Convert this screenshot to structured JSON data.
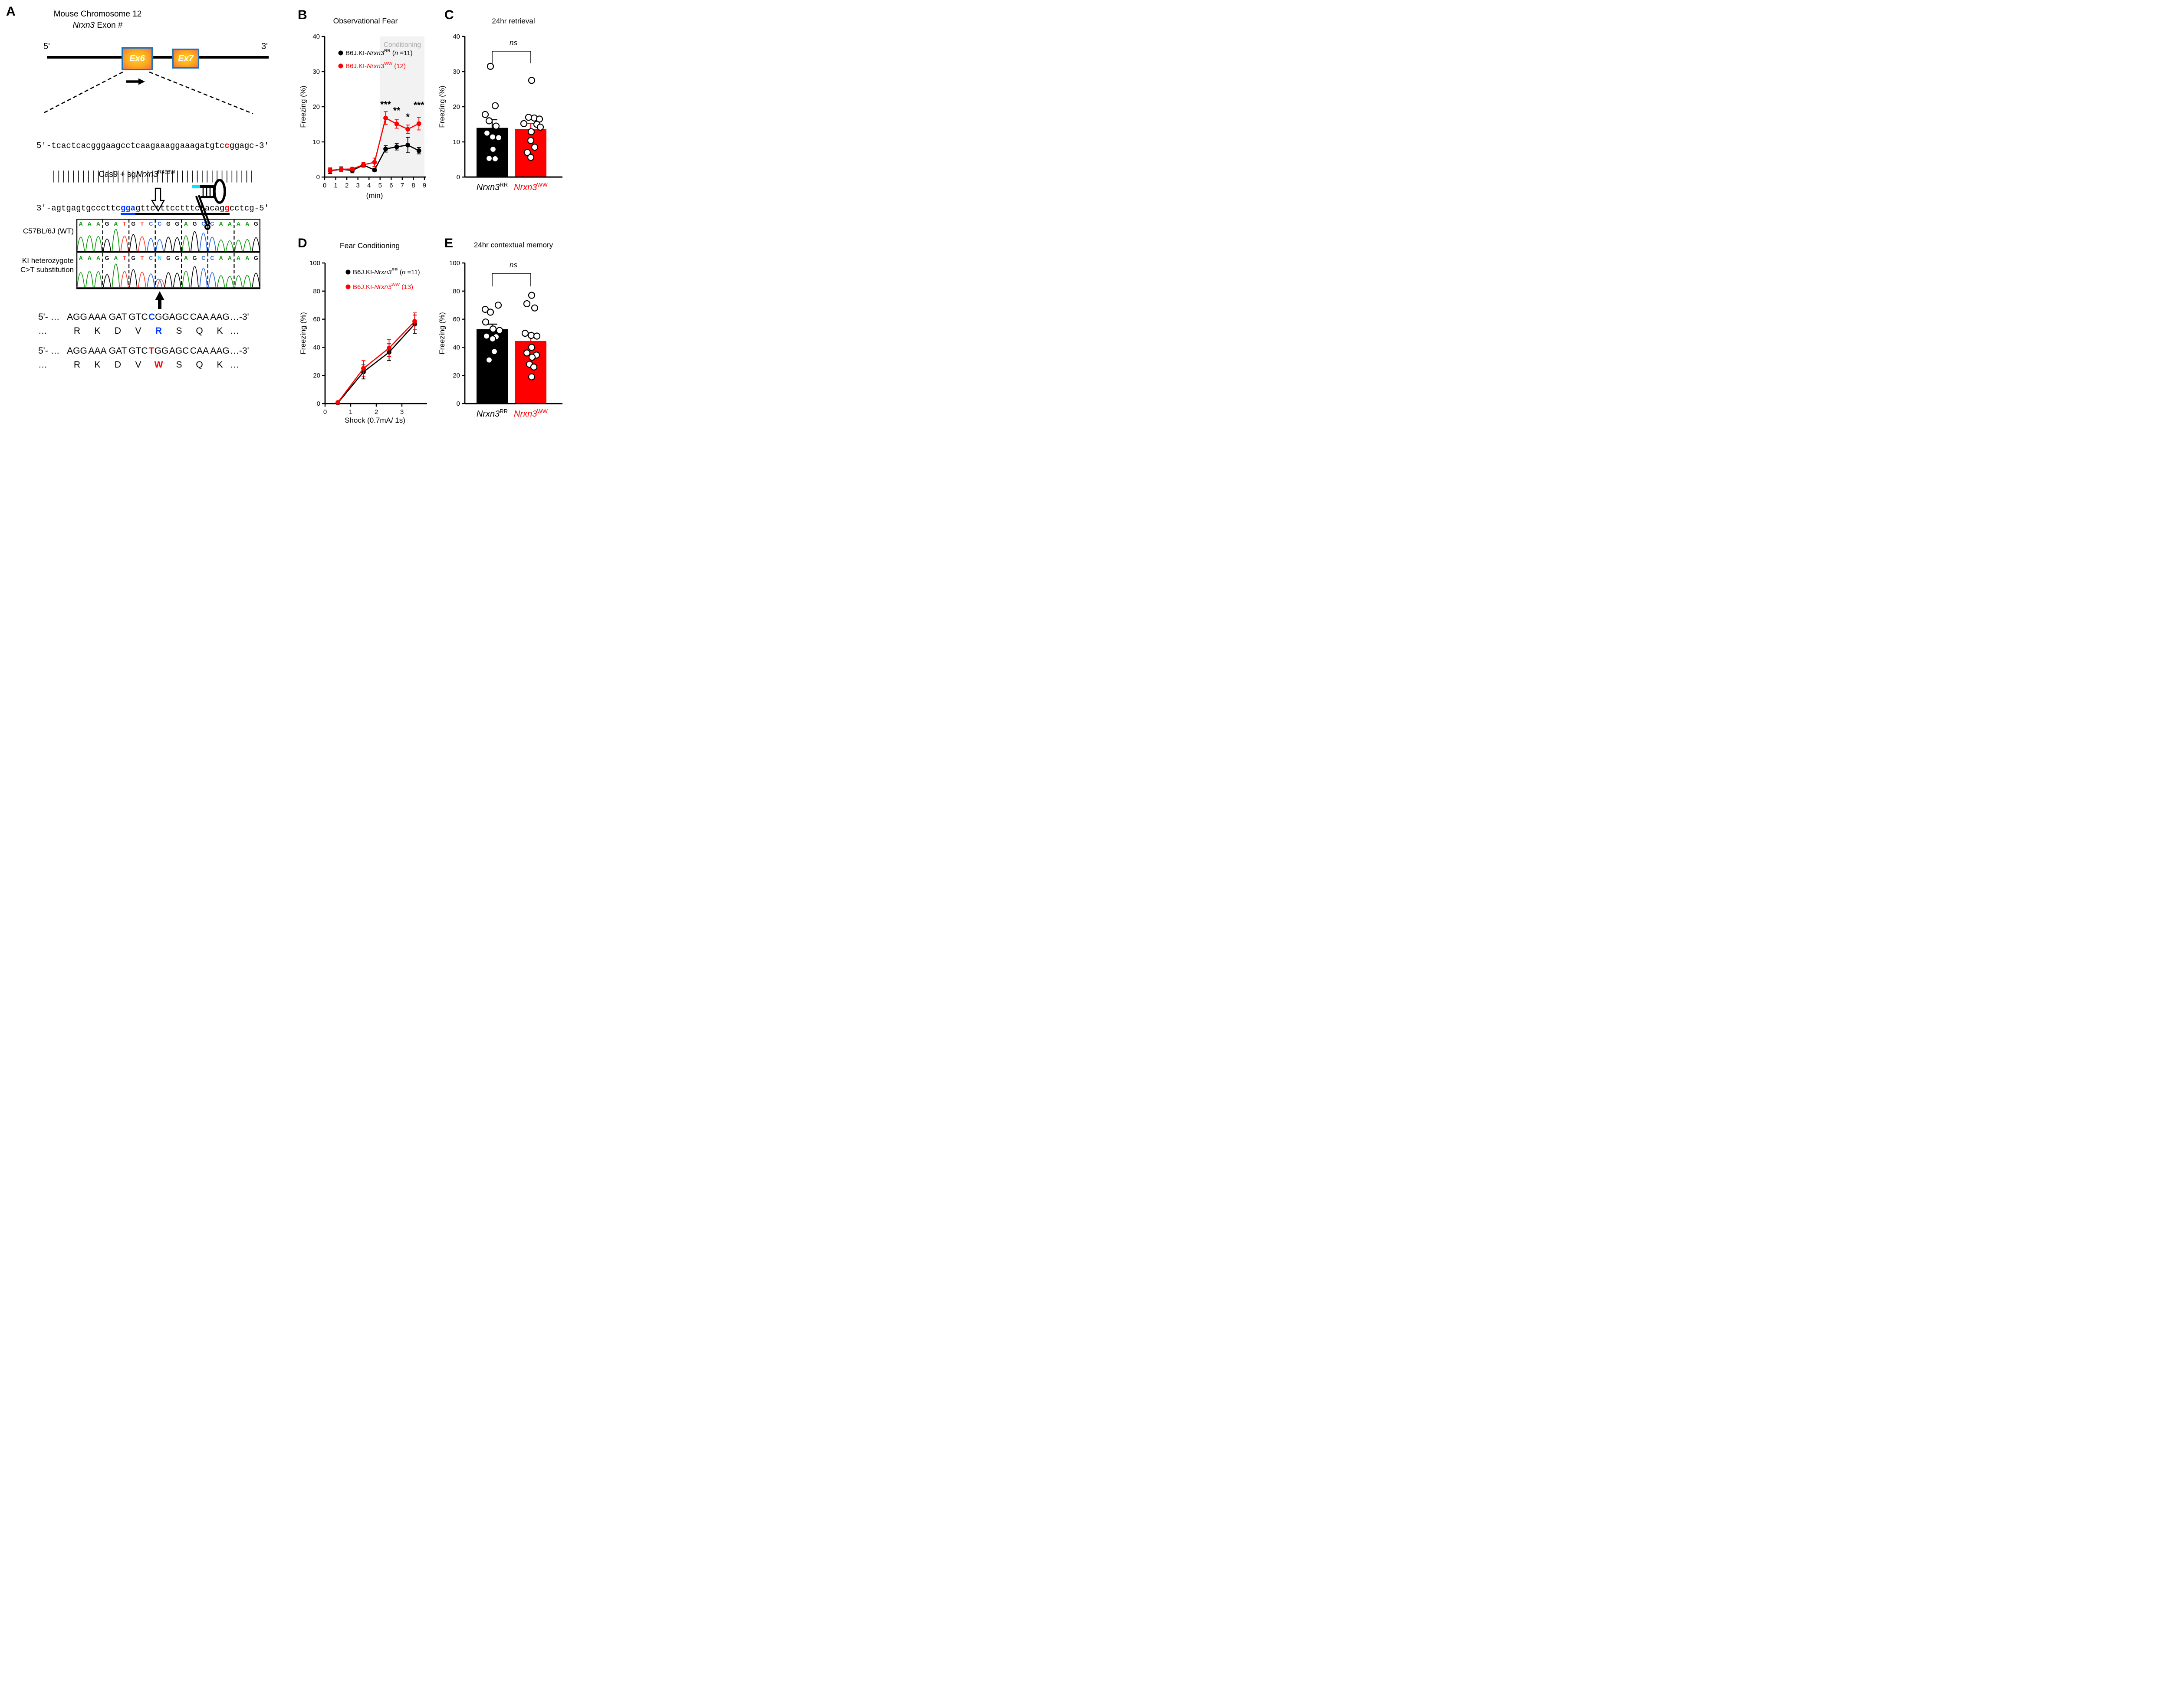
{
  "panels": {
    "a": "A",
    "b": "B",
    "c": "C",
    "d": "D",
    "e": "E"
  },
  "panel_a": {
    "title_line1": "Mouse Chromosome 12",
    "title_gene": "Nrxn3",
    "title_rest": " Exon #",
    "five_prime": "5'",
    "three_prime": "3'",
    "exons": [
      "Ex6",
      "Ex7"
    ],
    "top_strand": [
      {
        "t": "5'-tcactcacgggaagcctcaagaaaggaaagatgtc"
      },
      {
        "t": "c",
        "cls": "hl-red"
      },
      {
        "t": "ggagc-3'"
      }
    ],
    "pair_bars": "   |||||||||||||||||||||||||||||||||||||||||",
    "bottom_strand": [
      {
        "t": "3'-agtgagtgcccttc"
      },
      {
        "t": "gga",
        "cls": "hl-blue u-blue"
      },
      {
        "t": "gttctttcctttctacag",
        "cls": "u-black"
      },
      {
        "t": "g",
        "cls": "hl-red u-black"
      },
      {
        "t": "cctcg-5'"
      }
    ],
    "cas9_pre": "Cas9 + sg",
    "cas9_gene": "Nrxn3",
    "cas9_sup": "R498W",
    "chromatogram": {
      "labels": [
        "C57BL/6J (WT)",
        "KI heterozygote",
        "C>T substitution"
      ],
      "wt_letters": "AAAGATGTCCGGAGCCAAAAG",
      "ki_letters": "AAAGATGTCNGGAGCCAAAAG",
      "het_index": 9,
      "base_colors": {
        "A": "#0a9a0a",
        "G": "#000000",
        "T": "#ff3a28",
        "C": "#2464d8",
        "N": "#35d0f5"
      },
      "wt_heights": [
        0.6,
        0.66,
        0.63,
        0.52,
        0.95,
        0.65,
        0.72,
        0.62,
        0.55,
        0.5,
        0.6,
        0.58,
        0.66,
        0.85,
        0.78,
        0.6,
        0.48,
        0.44,
        0.47,
        0.5,
        0.58
      ],
      "ki_heights": [
        0.58,
        0.64,
        0.62,
        0.5,
        0.92,
        0.63,
        0.7,
        0.6,
        0.53,
        0.3,
        0.58,
        0.56,
        0.64,
        0.83,
        0.76,
        0.58,
        0.46,
        0.43,
        0.46,
        0.48,
        0.56
      ]
    },
    "codons": {
      "wt_dna": {
        "pre": "5'- …",
        "items": [
          {
            "t": "AGG"
          },
          {
            "t": "AAA"
          },
          {
            "t": "GAT"
          },
          {
            "t": "GTC"
          },
          {
            "t": "CGG",
            "hl": "C",
            "hl_color": "#0038ff"
          },
          {
            "t": "AGC"
          },
          {
            "t": "CAA"
          },
          {
            "t": "AAG"
          }
        ],
        "post": "…-3'"
      },
      "wt_aa": {
        "pre": "…",
        "items": [
          {
            "t": "R"
          },
          {
            "t": "K"
          },
          {
            "t": "D"
          },
          {
            "t": "V"
          },
          {
            "t": "R",
            "hl": "R",
            "hl_color": "#0038ff"
          },
          {
            "t": "S"
          },
          {
            "t": "Q"
          },
          {
            "t": "K"
          }
        ],
        "post": "…"
      },
      "ki_dna": {
        "pre": "5'- …",
        "items": [
          {
            "t": "AGG"
          },
          {
            "t": "AAA"
          },
          {
            "t": "GAT"
          },
          {
            "t": "GTC"
          },
          {
            "t": "TGG",
            "hl": "T",
            "hl_color": "#ff0000"
          },
          {
            "t": "AGC"
          },
          {
            "t": "CAA"
          },
          {
            "t": "AAG"
          }
        ],
        "post": "…-3'"
      },
      "ki_aa": {
        "pre": "…",
        "items": [
          {
            "t": "R"
          },
          {
            "t": "K"
          },
          {
            "t": "D"
          },
          {
            "t": "V"
          },
          {
            "t": "W",
            "hl": "W",
            "hl_color": "#ff0000"
          },
          {
            "t": "S"
          },
          {
            "t": "Q"
          },
          {
            "t": "K"
          }
        ],
        "post": "…"
      }
    }
  },
  "chart_data": [
    {
      "id": "B",
      "type": "line",
      "title": "Observational Fear",
      "xlabel": "(min)",
      "ylabel": "Freezing (%)",
      "ylim": [
        0,
        40
      ],
      "yticks": [
        0,
        10,
        20,
        30,
        40
      ],
      "xticks": [
        0,
        1,
        2,
        3,
        4,
        5,
        6,
        7,
        8,
        9
      ],
      "band": {
        "x0": 5,
        "x1": 9,
        "label": "Conditioning",
        "fill": "#f2f2f2",
        "label_color": "#a8a8a8"
      },
      "x": [
        0.5,
        1.5,
        2.5,
        3.5,
        4.5,
        5.5,
        6.5,
        7.5,
        8.5
      ],
      "series": [
        {
          "name": "B6J.KI-Nrxn3RR",
          "color": "#000000",
          "values": [
            1.8,
            2.2,
            1.9,
            3.4,
            2.0,
            8.0,
            8.6,
            9.1,
            7.5
          ],
          "errors": [
            0.8,
            0.7,
            0.7,
            0.6,
            0.5,
            0.9,
            0.9,
            2.2,
            0.9
          ],
          "legend": [
            {
              "t": "B6J.KI-"
            },
            {
              "t": "Nrxn3",
              "it": true
            },
            {
              "t": "RR",
              "sup": true
            },
            {
              "t": " ("
            },
            {
              "t": "n",
              "it": true
            },
            {
              "t": " =11)"
            }
          ]
        },
        {
          "name": "B6J.KI-Nrxn3WW",
          "color": "#fe0000",
          "values": [
            1.9,
            2.2,
            2.3,
            3.5,
            4.2,
            16.8,
            15.1,
            13.6,
            15.2
          ],
          "errors": [
            0.5,
            0.6,
            0.5,
            0.7,
            1.2,
            1.8,
            1.2,
            1.2,
            1.8
          ],
          "legend": [
            {
              "t": "B6J.KI-"
            },
            {
              "t": "Nrxn3",
              "it": true
            },
            {
              "t": "WW",
              "sup": true
            },
            {
              "t": " (12)"
            }
          ]
        }
      ],
      "stars": [
        {
          "x": 5.5,
          "y": 19.8,
          "label": "***"
        },
        {
          "x": 6.5,
          "y": 18.1,
          "label": "**"
        },
        {
          "x": 7.5,
          "y": 16.3,
          "label": "*"
        },
        {
          "x": 8.5,
          "y": 19.6,
          "label": "***"
        }
      ]
    },
    {
      "id": "C",
      "type": "bar",
      "title": "24hr retrieval",
      "ylabel": "Freezing (%)",
      "ylim": [
        0,
        40
      ],
      "yticks": [
        0,
        10,
        20,
        30,
        40
      ],
      "ns_label": "ns",
      "groups": [
        {
          "label_parts": [
            {
              "t": "Nrxn3",
              "it": true
            },
            {
              "t": "RR",
              "sup": true
            }
          ],
          "label_color": "#000000",
          "bar_color": "#000000",
          "err_color": "#000000",
          "mean": 14.0,
          "sem": 2.3,
          "points": [
            31.5,
            20.3,
            17.8,
            16.0,
            14.5,
            12.5,
            11.4,
            11.2,
            7.9,
            5.3,
            5.2
          ],
          "jitter": [
            -4,
            7,
            -16,
            -7,
            9,
            -12,
            1,
            15,
            2,
            -7,
            7
          ]
        },
        {
          "label_parts": [
            {
              "t": "Nrxn3",
              "it": true
            },
            {
              "t": "WW",
              "sup": true
            }
          ],
          "label_color": "#fe0000",
          "bar_color": "#fe0000",
          "err_color": "#fe0000",
          "mean": 13.7,
          "sem": 1.5,
          "points": [
            27.5,
            17.0,
            16.8,
            16.5,
            15.2,
            15.0,
            14.2,
            12.9,
            10.4,
            8.5,
            7.0,
            5.6
          ],
          "jitter": [
            2,
            -5,
            8,
            20,
            -16,
            14,
            22,
            1,
            0,
            9,
            -8,
            0
          ]
        }
      ]
    },
    {
      "id": "D",
      "type": "line",
      "title": "Fear Conditioning",
      "xlabel": "Shock (0.7mA/ 1s)",
      "ylabel": "Freezing (%)",
      "ylim": [
        0,
        100
      ],
      "yticks": [
        0,
        20,
        40,
        60,
        80,
        100
      ],
      "xticks": [
        0,
        1,
        2,
        3
      ],
      "x": [
        0.5,
        1.5,
        2.5,
        3.5
      ],
      "series": [
        {
          "name": "B6J.KI-Nrxn3RR",
          "color": "#000000",
          "values": [
            0.5,
            22.5,
            36.5,
            56.5
          ],
          "errors": [
            0.5,
            5.0,
            6.0,
            6.5
          ],
          "legend": [
            {
              "t": "B6J.KI-"
            },
            {
              "t": "Nrxn3",
              "it": true
            },
            {
              "t": "RR",
              "sup": true
            },
            {
              "t": " ("
            },
            {
              "t": "n",
              "it": true
            },
            {
              "t": " =11)"
            }
          ]
        },
        {
          "name": "B6J.KI-Nrxn3WW",
          "color": "#fe0000",
          "values": [
            0.8,
            25.0,
            39.5,
            58.5
          ],
          "errors": [
            0.5,
            5.5,
            6.0,
            6.0
          ],
          "legend": [
            {
              "t": "B6J.KI-"
            },
            {
              "t": "Nrxn3",
              "it": true
            },
            {
              "t": "WW",
              "sup": true
            },
            {
              "t": " (13)"
            }
          ]
        }
      ],
      "stars": []
    },
    {
      "id": "E",
      "type": "bar",
      "title": "24hr contextual memory",
      "ylabel": "Freezing (%)",
      "ylim": [
        0,
        100
      ],
      "yticks": [
        0,
        20,
        40,
        60,
        80,
        100
      ],
      "ns_label": "ns",
      "groups": [
        {
          "label_parts": [
            {
              "t": "Nrxn3",
              "it": true
            },
            {
              "t": "RR",
              "sup": true
            }
          ],
          "label_color": "#000000",
          "bar_color": "#000000",
          "err_color": "#000000",
          "mean": 53.0,
          "sem": 3.5,
          "points": [
            70,
            67,
            65,
            58,
            53,
            52,
            48,
            47.5,
            46,
            37,
            31
          ],
          "jitter": [
            14,
            -16,
            -4,
            -15,
            2,
            17,
            -13,
            9,
            1,
            5,
            -7
          ]
        },
        {
          "label_parts": [
            {
              "t": "Nrxn3",
              "it": true
            },
            {
              "t": "WW",
              "sup": true
            }
          ],
          "label_color": "#fe0000",
          "bar_color": "#fe0000",
          "err_color": "#fe0000",
          "mean": 44.5,
          "sem": 5.0,
          "points": [
            77,
            71,
            68,
            50,
            48.5,
            48,
            40,
            36,
            34.5,
            33,
            28,
            26,
            19
          ],
          "jitter": [
            2,
            -9,
            9,
            -13,
            1,
            14,
            2,
            -9,
            13,
            3,
            -3,
            7,
            2
          ]
        }
      ]
    }
  ]
}
